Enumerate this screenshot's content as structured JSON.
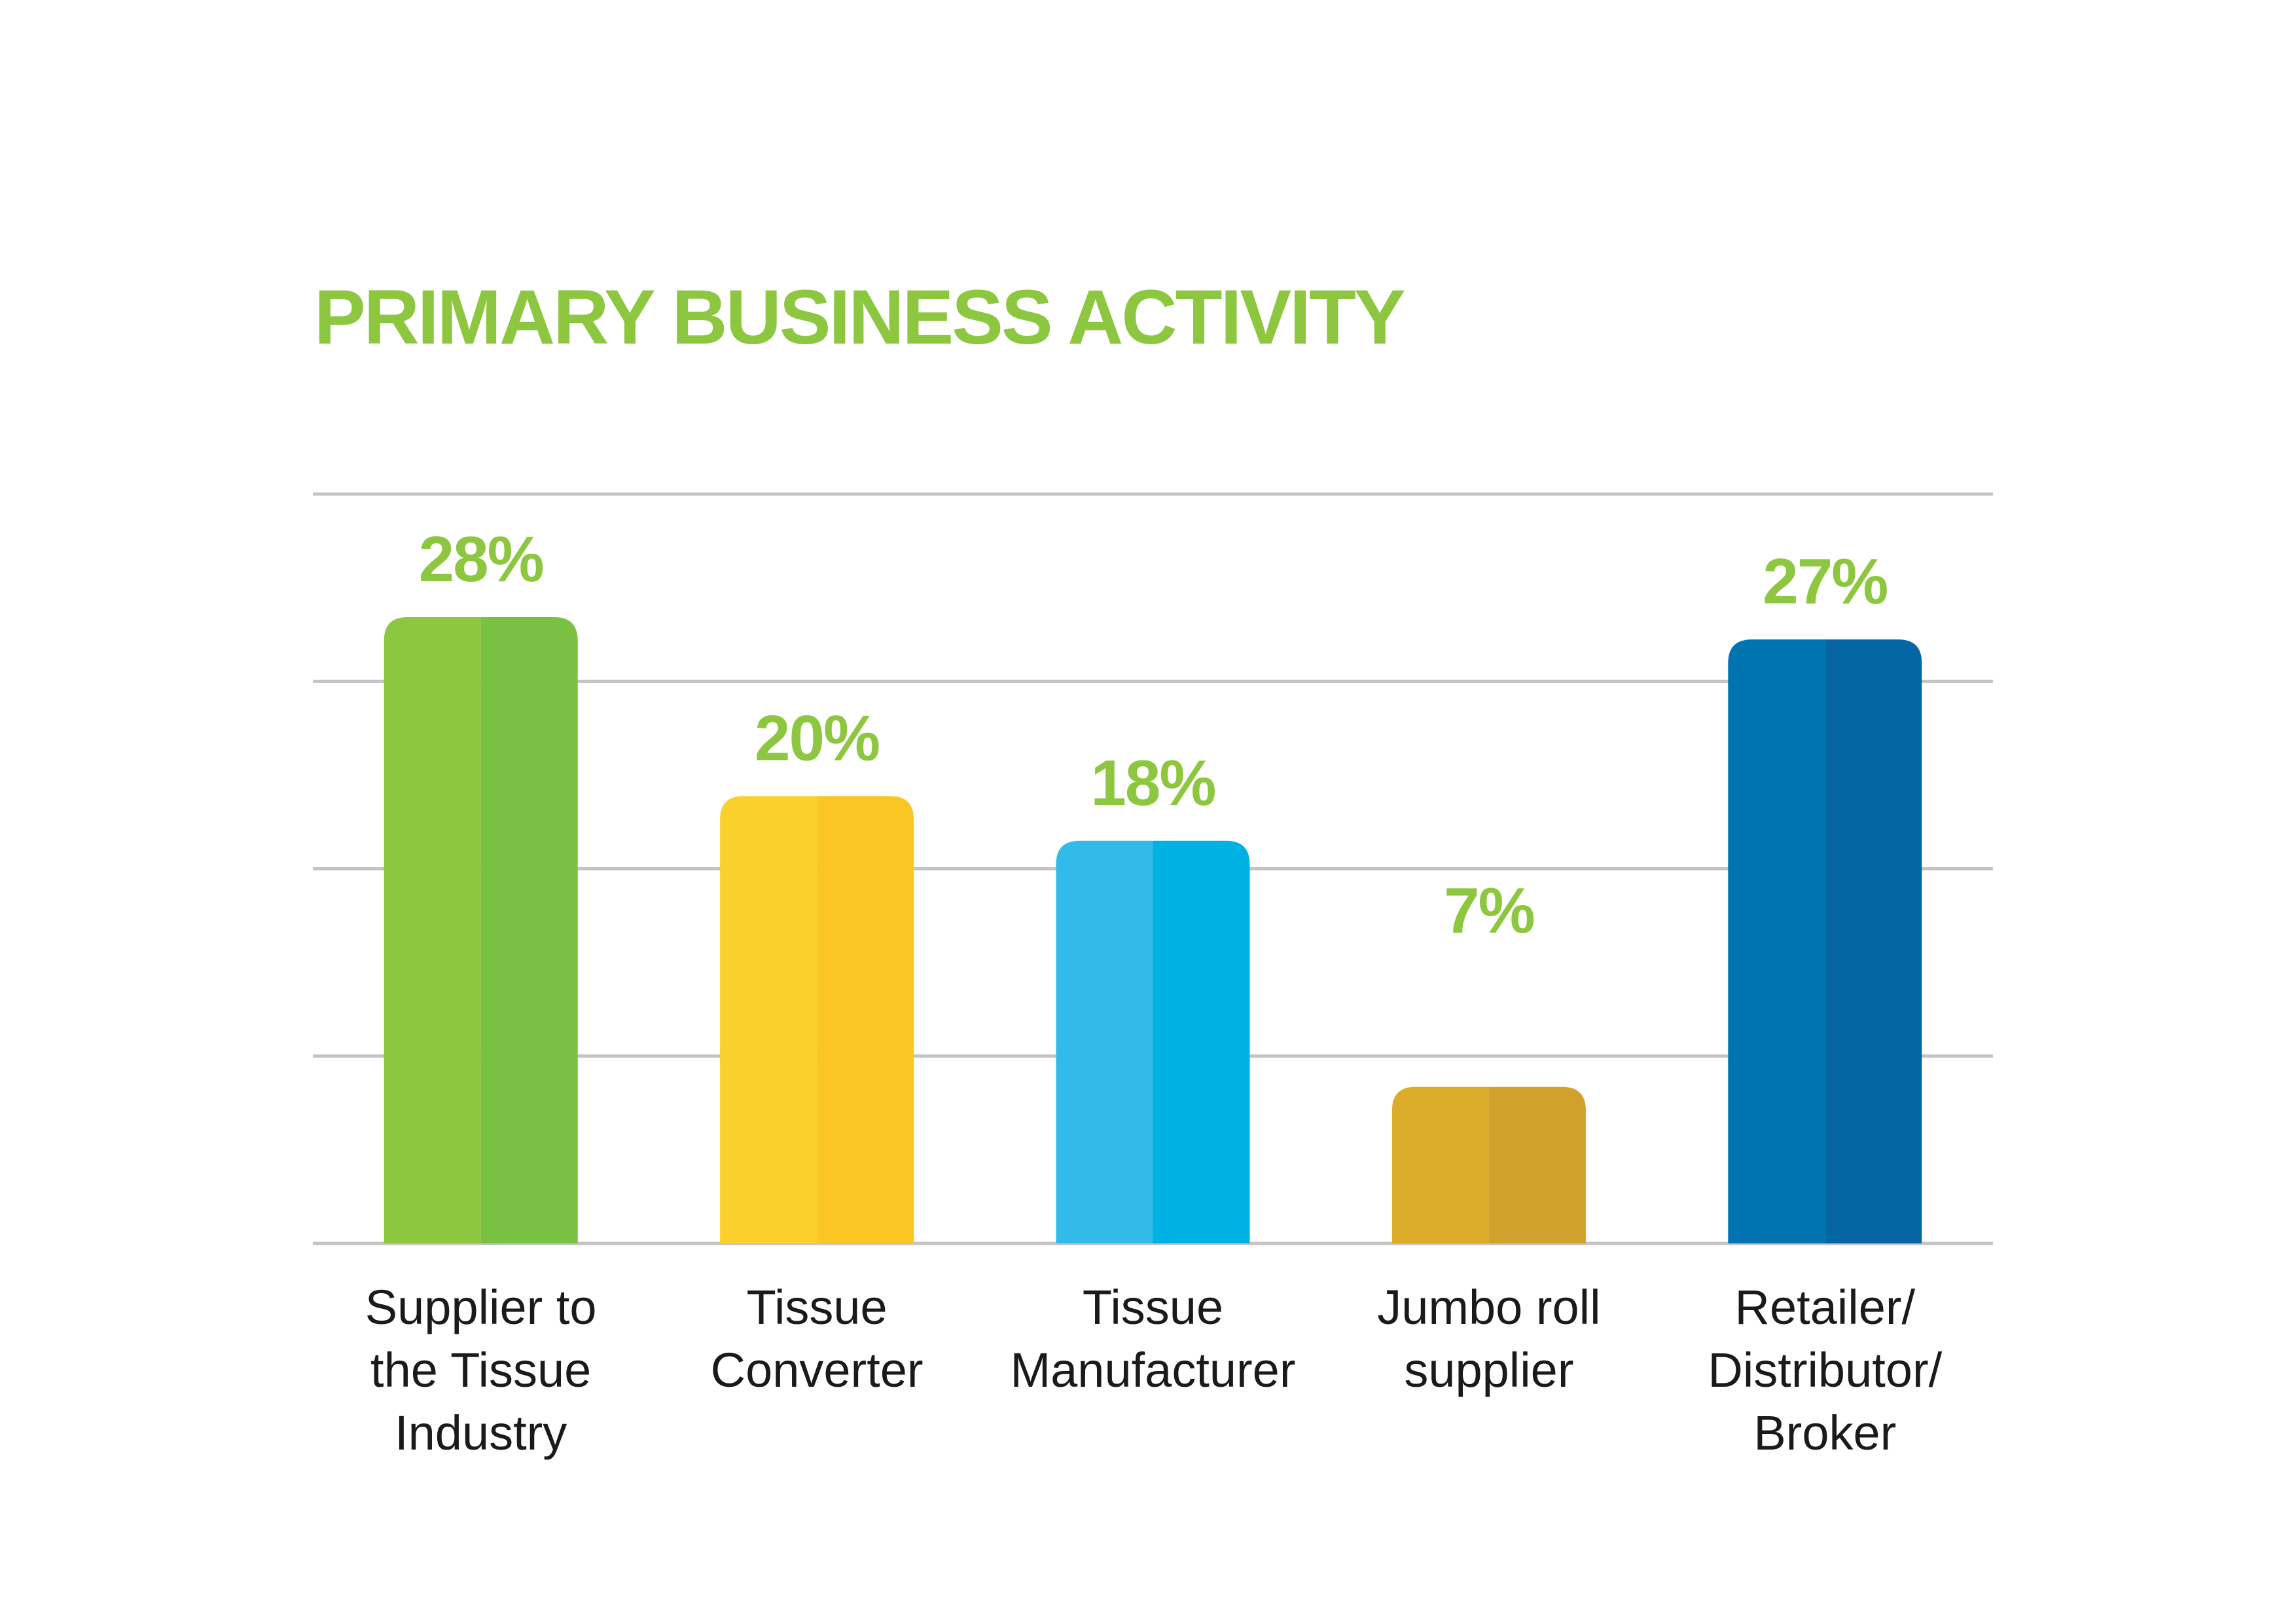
{
  "chart_data": {
    "type": "bar",
    "title": "PRIMARY BUSINESS ACTIVITY",
    "categories": [
      "Supplier to the Tissue Industry",
      "Tissue Converter",
      "Tissue Manufacturer",
      "Jumbo roll supplier",
      "Retailer/ Distributor/ Broker"
    ],
    "category_lines": [
      [
        "Supplier to",
        "the Tissue",
        "Industry"
      ],
      [
        "Tissue",
        "Converter"
      ],
      [
        "Tissue",
        "Manufacturer"
      ],
      [
        "Jumbo roll",
        "supplier"
      ],
      [
        "Retailer/",
        "Distributor/",
        "Broker"
      ]
    ],
    "values": [
      28,
      20,
      18,
      7,
      27
    ],
    "value_labels": [
      "28%",
      "20%",
      "18%",
      "7%",
      "27%"
    ],
    "ylim": [
      0,
      33.5
    ],
    "grid": true,
    "bar_colors": [
      [
        "#8dc63f",
        "#7ac143"
      ],
      [
        "#fad02c",
        "#f9c623"
      ],
      [
        "#32bbe8",
        "#00b2e3"
      ],
      [
        "#dbac2a",
        "#d1a12d"
      ],
      [
        "#0073b1",
        "#0566a3"
      ]
    ],
    "accent_color": "#8dc63f",
    "grid_color": "#c4c4c4"
  }
}
